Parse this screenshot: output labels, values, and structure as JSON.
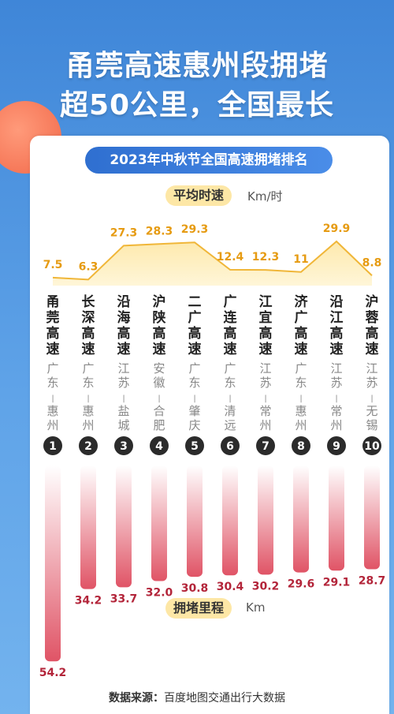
{
  "headline": {
    "line1": "甬莞高速惠州段拥堵",
    "line2": "超50公里，全国最长"
  },
  "chart_data": {
    "type": "line",
    "title": "2023年中秋节全国高速拥堵排名",
    "speed_label": "平均时速",
    "speed_unit": "Km/时",
    "length_label": "拥堵里程",
    "length_unit": "Km",
    "ranks": [
      "1",
      "2",
      "3",
      "4",
      "5",
      "6",
      "7",
      "8",
      "9",
      "10"
    ],
    "roads": [
      "甬莞高速",
      "长深高速",
      "沿海高速",
      "沪陕高速",
      "二广高速",
      "广连高速",
      "江宜高速",
      "济广高速",
      "沿江高速",
      "沪蓉高速"
    ],
    "regions": [
      "广东-惠州",
      "广东-惠州",
      "江苏-盐城",
      "安徽-合肥",
      "广东-肇庆",
      "广东-清远",
      "江苏-常州",
      "广东-惠州",
      "江苏-常州",
      "江苏-无锡"
    ],
    "series": [
      {
        "name": "平均时速",
        "values": [
          7.5,
          6.3,
          27.3,
          28.3,
          29.3,
          12.4,
          12.3,
          11.0,
          29.9,
          8.8
        ]
      },
      {
        "name": "拥堵里程",
        "values": [
          54.2,
          34.2,
          33.7,
          32.0,
          30.8,
          30.4,
          30.2,
          29.6,
          29.1,
          28.7
        ]
      }
    ],
    "colors": {
      "line": "#f0b638",
      "area": "#fde9ad",
      "bar_top": "#ffffff",
      "bar_bottom": "#e05466",
      "badge": "#2b2b2b",
      "speed_label": "#e69b12",
      "length_label": "#b3253a"
    }
  },
  "source": {
    "label": "数据来源：",
    "text": "百度地图交通出行大数据"
  }
}
